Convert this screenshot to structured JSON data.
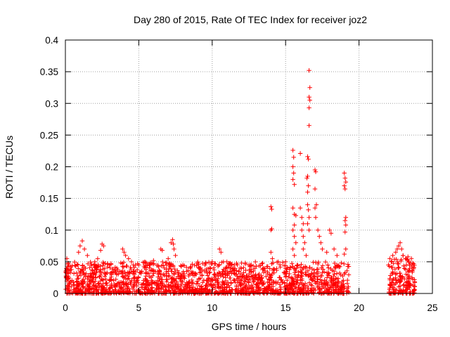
{
  "chart_data": {
    "type": "scatter",
    "title": "Day 280 of 2015, Rate Of TEC Index for receiver joz2",
    "xlabel": "GPS time / hours",
    "ylabel": "ROTI / TECUs",
    "xlim": [
      0,
      25
    ],
    "ylim": [
      0,
      0.4
    ],
    "x_ticks": [
      0,
      5,
      10,
      15,
      20,
      25
    ],
    "x_tick_labels": [
      "0",
      "5",
      "10",
      "15",
      "20",
      "25"
    ],
    "y_ticks": [
      0,
      0.05,
      0.1,
      0.15,
      0.2,
      0.25,
      0.3,
      0.35,
      0.4
    ],
    "y_tick_labels": [
      "0",
      "0.05",
      "0.1",
      "0.15",
      "0.2",
      "0.25",
      "0.3",
      "0.35",
      "0.4"
    ],
    "grid": true,
    "marker": "+",
    "marker_color": "#ff0000",
    "series": [
      {
        "name": "ROTI",
        "description_segments": [
          {
            "x_range": [
              0,
              19.3
            ],
            "typical_max": 0.05,
            "note": "dense background"
          },
          {
            "x_range": [
              22.0,
              23.8
            ],
            "typical_max": 0.06,
            "note": "dense background"
          }
        ],
        "points": [
          [
            0.1,
            0.055
          ],
          [
            0.2,
            0.048
          ],
          [
            0.9,
            0.065
          ],
          [
            1.0,
            0.075
          ],
          [
            1.15,
            0.083
          ],
          [
            1.3,
            0.07
          ],
          [
            1.5,
            0.06
          ],
          [
            2.2,
            0.055
          ],
          [
            2.5,
            0.078
          ],
          [
            2.6,
            0.075
          ],
          [
            2.4,
            0.068
          ],
          [
            2.0,
            0.05
          ],
          [
            3.0,
            0.045
          ],
          [
            3.5,
            0.04
          ],
          [
            3.9,
            0.07
          ],
          [
            4.0,
            0.065
          ],
          [
            4.1,
            0.06
          ],
          [
            4.3,
            0.055
          ],
          [
            4.5,
            0.05
          ],
          [
            5.0,
            0.045
          ],
          [
            5.5,
            0.048
          ],
          [
            6.0,
            0.052
          ],
          [
            6.5,
            0.07
          ],
          [
            6.6,
            0.068
          ],
          [
            7.0,
            0.055
          ],
          [
            7.2,
            0.08
          ],
          [
            7.3,
            0.085
          ],
          [
            7.35,
            0.078
          ],
          [
            7.4,
            0.07
          ],
          [
            7.5,
            0.06
          ],
          [
            8.0,
            0.045
          ],
          [
            8.5,
            0.04
          ],
          [
            9.0,
            0.048
          ],
          [
            9.5,
            0.045
          ],
          [
            10.0,
            0.05
          ],
          [
            10.5,
            0.07
          ],
          [
            10.6,
            0.065
          ],
          [
            11.0,
            0.05
          ],
          [
            11.5,
            0.045
          ],
          [
            12.0,
            0.048
          ],
          [
            12.5,
            0.045
          ],
          [
            13.0,
            0.043
          ],
          [
            13.5,
            0.04
          ],
          [
            14.0,
            0.137
          ],
          [
            14.05,
            0.133
          ],
          [
            14.0,
            0.1
          ],
          [
            14.05,
            0.102
          ],
          [
            14.0,
            0.065
          ],
          [
            14.1,
            0.055
          ],
          [
            14.5,
            0.05
          ],
          [
            15.0,
            0.05
          ],
          [
            15.5,
            0.226
          ],
          [
            15.55,
            0.215
          ],
          [
            15.5,
            0.2
          ],
          [
            15.55,
            0.19
          ],
          [
            15.5,
            0.18
          ],
          [
            15.6,
            0.172
          ],
          [
            15.5,
            0.135
          ],
          [
            15.6,
            0.125
          ],
          [
            15.7,
            0.123
          ],
          [
            15.6,
            0.108
          ],
          [
            15.5,
            0.1
          ],
          [
            15.6,
            0.09
          ],
          [
            15.7,
            0.08
          ],
          [
            15.5,
            0.07
          ],
          [
            15.6,
            0.06
          ],
          [
            16.0,
            0.221
          ],
          [
            16.0,
            0.135
          ],
          [
            16.1,
            0.12
          ],
          [
            16.2,
            0.11
          ],
          [
            16.1,
            0.1
          ],
          [
            16.2,
            0.09
          ],
          [
            16.3,
            0.08
          ],
          [
            16.2,
            0.07
          ],
          [
            16.4,
            0.06
          ],
          [
            16.5,
            0.216
          ],
          [
            16.55,
            0.212
          ],
          [
            16.5,
            0.185
          ],
          [
            16.45,
            0.182
          ],
          [
            16.5,
            0.16
          ],
          [
            16.55,
            0.17
          ],
          [
            16.5,
            0.14
          ],
          [
            16.55,
            0.132
          ],
          [
            16.6,
            0.12
          ],
          [
            16.5,
            0.11
          ],
          [
            16.6,
            0.1
          ],
          [
            16.6,
            0.352
          ],
          [
            16.65,
            0.325
          ],
          [
            16.6,
            0.31
          ],
          [
            16.65,
            0.305
          ],
          [
            16.6,
            0.293
          ],
          [
            16.6,
            0.265
          ],
          [
            17.0,
            0.195
          ],
          [
            17.05,
            0.192
          ],
          [
            17.0,
            0.165
          ],
          [
            17.1,
            0.14
          ],
          [
            17.0,
            0.135
          ],
          [
            17.05,
            0.12
          ],
          [
            17.2,
            0.1
          ],
          [
            17.3,
            0.09
          ],
          [
            17.4,
            0.08
          ],
          [
            17.5,
            0.07
          ],
          [
            17.8,
            0.065
          ],
          [
            18.0,
            0.1
          ],
          [
            18.1,
            0.095
          ],
          [
            18.3,
            0.07
          ],
          [
            18.5,
            0.06
          ],
          [
            19.0,
            0.19
          ],
          [
            19.05,
            0.182
          ],
          [
            19.1,
            0.176
          ],
          [
            19.0,
            0.17
          ],
          [
            19.05,
            0.165
          ],
          [
            19.1,
            0.12
          ],
          [
            19.05,
            0.115
          ],
          [
            19.1,
            0.108
          ],
          [
            19.05,
            0.097
          ],
          [
            19.1,
            0.07
          ],
          [
            19.0,
            0.062
          ],
          [
            22.0,
            0.045
          ],
          [
            22.1,
            0.055
          ],
          [
            22.2,
            0.05
          ],
          [
            22.3,
            0.06
          ],
          [
            22.5,
            0.065
          ],
          [
            22.6,
            0.07
          ],
          [
            22.7,
            0.075
          ],
          [
            22.8,
            0.08
          ],
          [
            22.9,
            0.07
          ],
          [
            23.0,
            0.06
          ],
          [
            23.2,
            0.055
          ],
          [
            23.4,
            0.05
          ],
          [
            23.5,
            0.048
          ],
          [
            23.6,
            0.045
          ]
        ]
      }
    ]
  }
}
